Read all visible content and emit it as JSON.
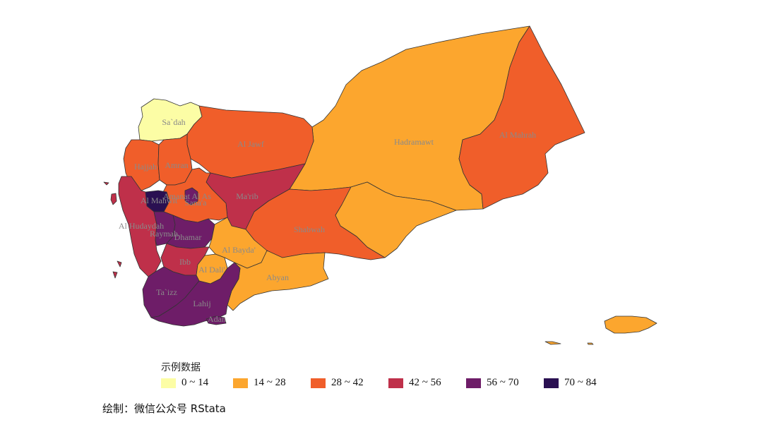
{
  "palette": {
    "bin1": "#FCFDA5",
    "bin2": "#FCA62E",
    "bin3": "#F05E2A",
    "bin4": "#BF304A",
    "bin5": "#6E1D68",
    "bin6": "#2A1052"
  },
  "legend": {
    "title": "示例数据",
    "items": [
      {
        "label": "0 ~ 14",
        "color": "#FCFDA5"
      },
      {
        "label": "14 ~ 28",
        "color": "#FCA62E"
      },
      {
        "label": "28 ~ 42",
        "color": "#F05E2A"
      },
      {
        "label": "42 ~ 56",
        "color": "#BF304A"
      },
      {
        "label": "56 ~ 70",
        "color": "#6E1D68"
      },
      {
        "label": "70 ~ 84",
        "color": "#2A1052"
      }
    ]
  },
  "caption": "绘制：微信公众号 RStata",
  "regions": [
    {
      "name": "Sa`dah",
      "bin": "0 ~ 14"
    },
    {
      "name": "Al Jawf",
      "bin": "28 ~ 42"
    },
    {
      "name": "Hadramawt",
      "bin": "14 ~ 28"
    },
    {
      "name": "Al Mahrah",
      "bin": "28 ~ 42"
    },
    {
      "name": "Hajjah",
      "bin": "28 ~ 42"
    },
    {
      "name": "Amran",
      "bin": "28 ~ 42"
    },
    {
      "name": "Amanat Al Asimah",
      "label": "Amanat Al As",
      "bin": "56 ~ 70"
    },
    {
      "name": "Sana'a",
      "bin": "28 ~ 42"
    },
    {
      "name": "Al Mahwit",
      "label": "Al Mahwit",
      "bin": "70 ~ 84"
    },
    {
      "name": "Ma'rib",
      "bin": "42 ~ 56"
    },
    {
      "name": "Shabwah",
      "bin": "28 ~ 42"
    },
    {
      "name": "Al Hudaydah",
      "bin": "42 ~ 56"
    },
    {
      "name": "Raymah",
      "bin": "56 ~ 70"
    },
    {
      "name": "Dhamar",
      "bin": "56 ~ 70"
    },
    {
      "name": "Al Bayda'",
      "bin": "14 ~ 28"
    },
    {
      "name": "Ibb",
      "bin": "42 ~ 56"
    },
    {
      "name": "Al Dali'",
      "bin": "14 ~ 28"
    },
    {
      "name": "Abyan",
      "bin": "14 ~ 28"
    },
    {
      "name": "Ta`izz",
      "bin": "56 ~ 70"
    },
    {
      "name": "Lahij",
      "bin": "56 ~ 70"
    },
    {
      "name": "Adan",
      "bin": "56 ~ 70"
    }
  ]
}
